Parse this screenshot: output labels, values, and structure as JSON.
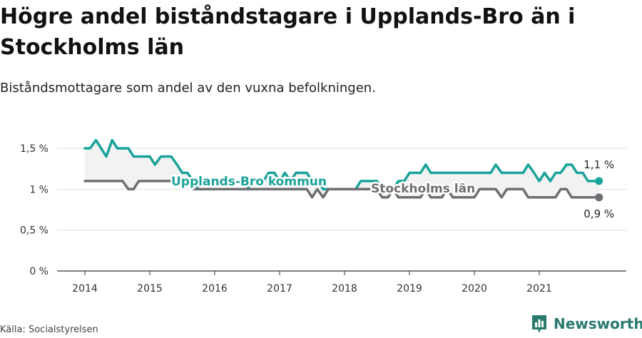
{
  "title": "Högre andel biståndstagare i Upplands-Bro än i Stockholms län",
  "subtitle": "Biståndsmottagare som andel av den vuxna befolkningen.",
  "source": "Källa: Socialstyrelsen",
  "brand": "Newsworthy",
  "colors": {
    "upplands": "#1aa39a",
    "stockholm": "#6e6e73",
    "fill": "#f2f2f2",
    "grid": "#dddddd",
    "brand": "#2a7a6e"
  },
  "chart_data": {
    "type": "line",
    "title": "Högre andel biståndstagare i Upplands-Bro än i Stockholms län",
    "subtitle": "Biståndsmottagare som andel av den vuxna befolkningen.",
    "ylim": [
      0,
      1.6
    ],
    "y_ticks": [
      0,
      0.5,
      1,
      1.5
    ],
    "y_tick_labels": [
      "0 %",
      "0,5 %",
      "1 %",
      "1,5 %"
    ],
    "x_ticks": [
      2014,
      2015,
      2016,
      2017,
      2018,
      2019,
      2020,
      2021
    ],
    "x_tick_labels": [
      "2014",
      "2015",
      "2016",
      "2017",
      "2018",
      "2019",
      "2020",
      "2021"
    ],
    "x_range": [
      2013.6,
      2022.3
    ],
    "grid": true,
    "series": [
      {
        "name": "Upplands-Bro kommun",
        "end_label": "1,1 %",
        "x": [
          2014.0,
          2014.08,
          2014.17,
          2014.25,
          2014.33,
          2014.42,
          2014.5,
          2014.58,
          2014.67,
          2014.75,
          2014.83,
          2014.92,
          2015.0,
          2015.08,
          2015.17,
          2015.25,
          2015.33,
          2015.42,
          2015.5,
          2015.58,
          2015.67,
          2015.75,
          2015.83,
          2015.92,
          2016.0,
          2016.08,
          2016.17,
          2016.25,
          2016.33,
          2016.42,
          2016.5,
          2016.58,
          2016.67,
          2016.75,
          2016.83,
          2016.92,
          2017.0,
          2017.08,
          2017.17,
          2017.25,
          2017.33,
          2017.42,
          2017.5,
          2017.58,
          2017.67,
          2017.75,
          2017.83,
          2017.92,
          2018.0,
          2018.08,
          2018.17,
          2018.25,
          2018.33,
          2018.42,
          2018.5,
          2018.58,
          2018.67,
          2018.75,
          2018.83,
          2018.92,
          2019.0,
          2019.08,
          2019.17,
          2019.25,
          2019.33,
          2019.42,
          2019.5,
          2019.58,
          2019.67,
          2019.75,
          2019.83,
          2019.92,
          2020.0,
          2020.08,
          2020.17,
          2020.25,
          2020.33,
          2020.42,
          2020.5,
          2020.58,
          2020.67,
          2020.75,
          2020.83,
          2020.92,
          2021.0,
          2021.08,
          2021.17,
          2021.25,
          2021.33,
          2021.42,
          2021.5,
          2021.58,
          2021.67,
          2021.75,
          2021.83,
          2021.92
        ],
        "values": [
          1.5,
          1.5,
          1.6,
          1.5,
          1.4,
          1.6,
          1.5,
          1.5,
          1.5,
          1.4,
          1.4,
          1.4,
          1.4,
          1.3,
          1.4,
          1.4,
          1.4,
          1.3,
          1.2,
          1.2,
          1.1,
          1.0,
          1.0,
          1.0,
          1.0,
          1.0,
          1.0,
          1.0,
          1.0,
          1.0,
          1.0,
          1.1,
          1.1,
          1.1,
          1.2,
          1.2,
          1.1,
          1.2,
          1.1,
          1.2,
          1.2,
          1.2,
          1.1,
          1.1,
          1.0,
          1.0,
          1.0,
          1.0,
          1.0,
          1.0,
          1.0,
          1.1,
          1.1,
          1.1,
          1.1,
          1.0,
          1.0,
          1.0,
          1.1,
          1.1,
          1.2,
          1.2,
          1.2,
          1.3,
          1.2,
          1.2,
          1.2,
          1.2,
          1.2,
          1.2,
          1.2,
          1.2,
          1.2,
          1.2,
          1.2,
          1.2,
          1.3,
          1.2,
          1.2,
          1.2,
          1.2,
          1.2,
          1.3,
          1.2,
          1.1,
          1.2,
          1.1,
          1.2,
          1.2,
          1.3,
          1.3,
          1.2,
          1.2,
          1.1,
          1.1,
          1.1
        ]
      },
      {
        "name": "Stockholms län",
        "end_label": "0,9 %",
        "x": [
          2014.0,
          2014.08,
          2014.17,
          2014.25,
          2014.33,
          2014.42,
          2014.5,
          2014.58,
          2014.67,
          2014.75,
          2014.83,
          2014.92,
          2015.0,
          2015.08,
          2015.17,
          2015.25,
          2015.33,
          2015.42,
          2015.5,
          2015.58,
          2015.67,
          2015.75,
          2015.83,
          2015.92,
          2016.0,
          2016.08,
          2016.17,
          2016.25,
          2016.33,
          2016.42,
          2016.5,
          2016.58,
          2016.67,
          2016.75,
          2016.83,
          2016.92,
          2017.0,
          2017.08,
          2017.17,
          2017.25,
          2017.33,
          2017.42,
          2017.5,
          2017.58,
          2017.67,
          2017.75,
          2017.83,
          2017.92,
          2018.0,
          2018.08,
          2018.17,
          2018.25,
          2018.33,
          2018.42,
          2018.5,
          2018.58,
          2018.67,
          2018.75,
          2018.83,
          2018.92,
          2019.0,
          2019.08,
          2019.17,
          2019.25,
          2019.33,
          2019.42,
          2019.5,
          2019.58,
          2019.67,
          2019.75,
          2019.83,
          2019.92,
          2020.0,
          2020.08,
          2020.17,
          2020.25,
          2020.33,
          2020.42,
          2020.5,
          2020.58,
          2020.67,
          2020.75,
          2020.83,
          2020.92,
          2021.0,
          2021.08,
          2021.17,
          2021.25,
          2021.33,
          2021.42,
          2021.5,
          2021.58,
          2021.67,
          2021.75,
          2021.83,
          2021.92
        ],
        "values": [
          1.1,
          1.1,
          1.1,
          1.1,
          1.1,
          1.1,
          1.1,
          1.1,
          1.0,
          1.0,
          1.1,
          1.1,
          1.1,
          1.1,
          1.1,
          1.1,
          1.1,
          1.1,
          1.1,
          1.1,
          1.0,
          1.0,
          1.0,
          1.0,
          1.0,
          1.0,
          1.0,
          1.0,
          1.0,
          1.0,
          1.0,
          1.0,
          1.0,
          1.0,
          1.0,
          1.0,
          1.0,
          1.0,
          1.0,
          1.0,
          1.0,
          1.0,
          0.9,
          1.0,
          0.9,
          1.0,
          1.0,
          1.0,
          1.0,
          1.0,
          1.0,
          1.0,
          1.0,
          1.0,
          1.0,
          0.9,
          0.9,
          1.0,
          0.9,
          0.9,
          0.9,
          0.9,
          0.9,
          1.0,
          0.9,
          0.9,
          0.9,
          1.0,
          0.9,
          0.9,
          0.9,
          0.9,
          0.9,
          1.0,
          1.0,
          1.0,
          1.0,
          0.9,
          1.0,
          1.0,
          1.0,
          1.0,
          0.9,
          0.9,
          0.9,
          0.9,
          0.9,
          0.9,
          1.0,
          1.0,
          0.9,
          0.9,
          0.9,
          0.9,
          0.9,
          0.9
        ]
      }
    ]
  }
}
